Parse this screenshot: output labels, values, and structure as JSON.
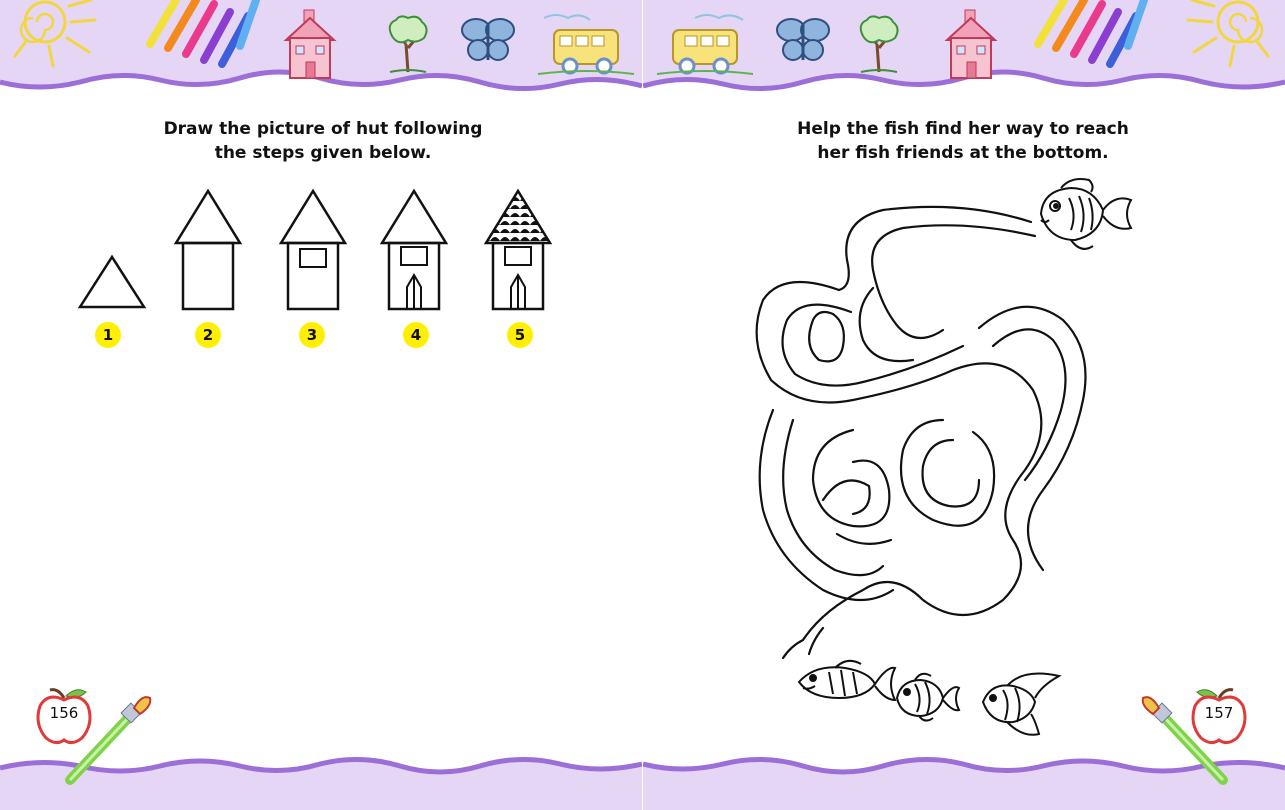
{
  "left_page": {
    "instruction_line1": "Draw the picture of hut following",
    "instruction_line2": "the steps given below.",
    "steps": [
      "1",
      "2",
      "3",
      "4",
      "5"
    ],
    "page_number": "156"
  },
  "right_page": {
    "instruction_line1": "Help the fish find her way to reach",
    "instruction_line2": "her fish friends at the bottom.",
    "page_number": "157"
  },
  "colors": {
    "band": "#e6d6f5",
    "wave": "#9b6ed8",
    "badge": "#ffef00"
  }
}
